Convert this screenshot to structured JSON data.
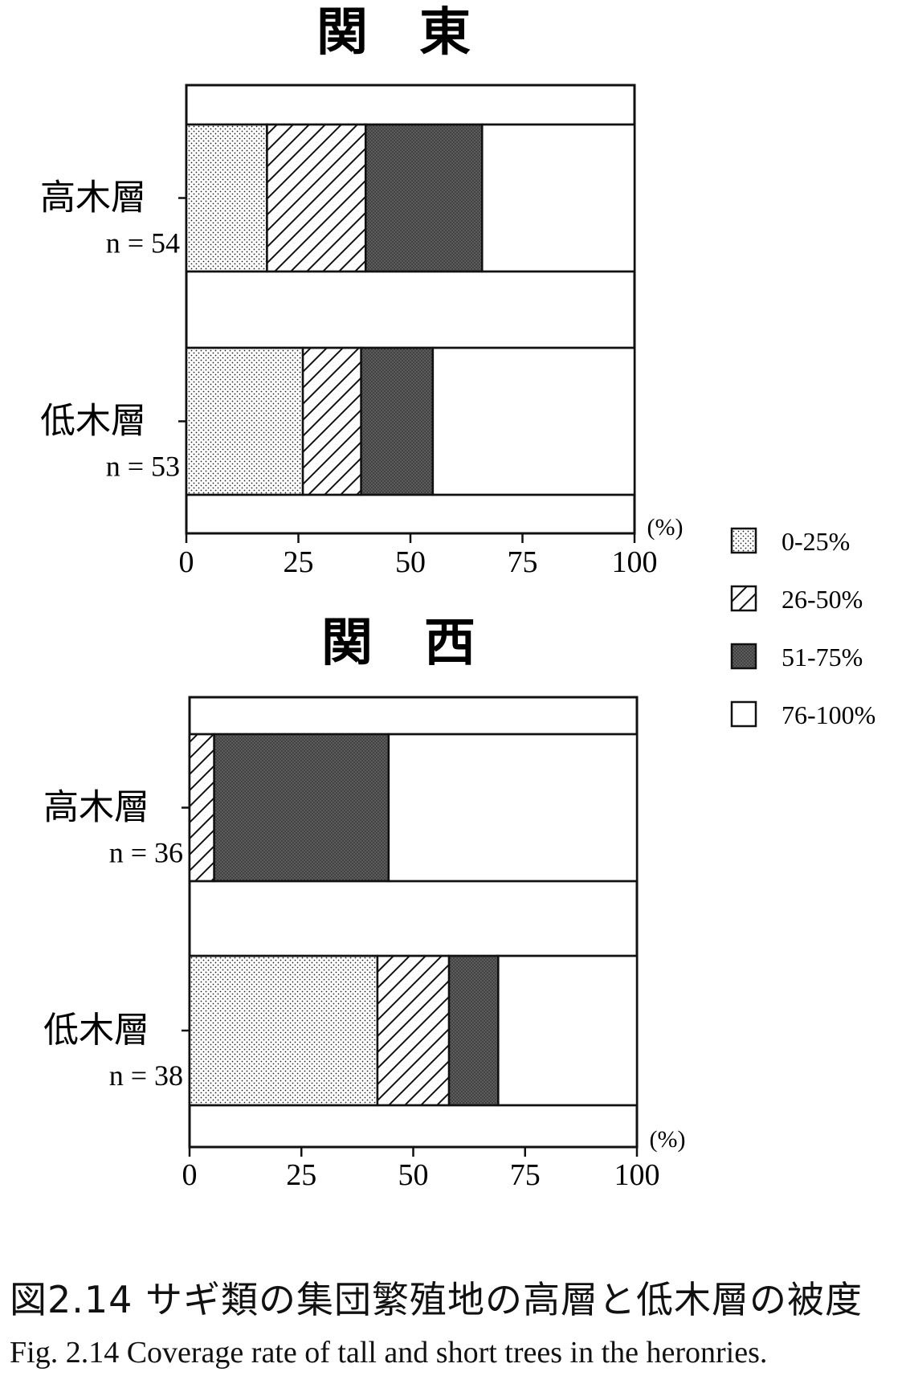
{
  "chart_data": [
    {
      "type": "bar",
      "stacked": true,
      "orientation": "horizontal",
      "title": "関　東",
      "categories": [
        "高木層",
        "低木層"
      ],
      "category_n": [
        "n = 54",
        "n = 53"
      ],
      "series": [
        {
          "name": "0-25%",
          "values": [
            18,
            26
          ]
        },
        {
          "name": "26-50%",
          "values": [
            22,
            13
          ]
        },
        {
          "name": "51-75%",
          "values": [
            26,
            16
          ]
        },
        {
          "name": "76-100%",
          "values": [
            34,
            45
          ]
        }
      ],
      "xlim": [
        0,
        100
      ],
      "xticks": [
        "0",
        "25",
        "50",
        "75",
        "100"
      ],
      "xunit": "(%)"
    },
    {
      "type": "bar",
      "stacked": true,
      "orientation": "horizontal",
      "title": "関　西",
      "categories": [
        "高木層",
        "低木層"
      ],
      "category_n": [
        "n = 36",
        "n = 38"
      ],
      "series": [
        {
          "name": "0-25%",
          "values": [
            0,
            42
          ]
        },
        {
          "name": "26-50%",
          "values": [
            5.5,
            16
          ]
        },
        {
          "name": "51-75%",
          "values": [
            39,
            11
          ]
        },
        {
          "name": "76-100%",
          "values": [
            55.5,
            31
          ]
        }
      ],
      "xlim": [
        0,
        100
      ],
      "xticks": [
        "0",
        "25",
        "50",
        "75",
        "100"
      ],
      "xunit": "(%)"
    }
  ],
  "legend": {
    "placement": "right",
    "items": [
      "0-25%",
      "26-50%",
      "51-75%",
      "76-100%"
    ]
  },
  "caption": {
    "japanese": "図2.14 サギ類の集団繁殖地の高層と低木層の被度",
    "english": "Fig. 2.14  Coverage rate of tall and short trees in the heronries."
  }
}
